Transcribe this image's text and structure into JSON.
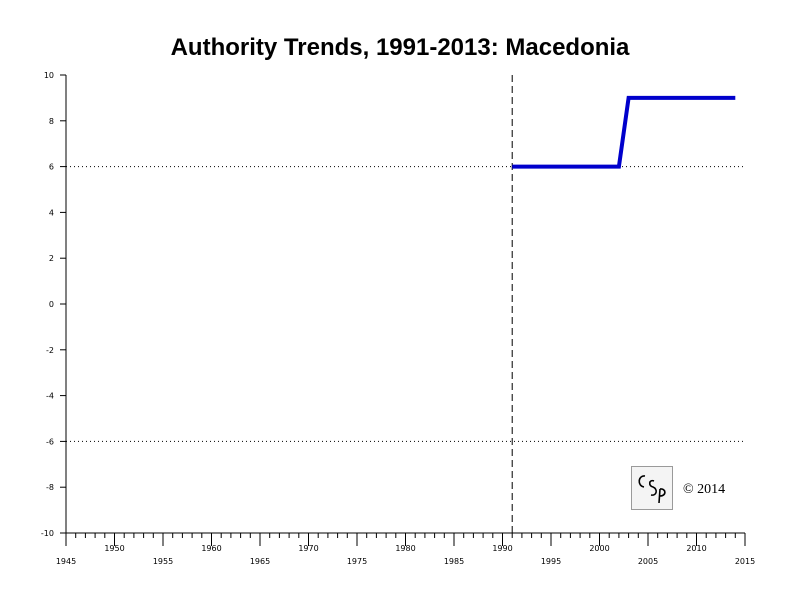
{
  "chart_data": {
    "type": "line",
    "title": "Authority Trends, 1991-2013: Macedonia",
    "xlabel": "",
    "ylabel": "",
    "xlim": [
      1945,
      2015
    ],
    "ylim": [
      -10,
      10
    ],
    "x_ticks_major": [
      1945,
      1950,
      1955,
      1960,
      1965,
      1970,
      1975,
      1980,
      1985,
      1990,
      1995,
      2000,
      2005,
      2010,
      2015
    ],
    "y_ticks": [
      10,
      8,
      6,
      4,
      2,
      0,
      -2,
      -4,
      -6,
      -8,
      -10
    ],
    "reference_lines": [
      {
        "axis": "y",
        "value": 6,
        "style": "dotted"
      },
      {
        "axis": "y",
        "value": -6,
        "style": "dotted"
      },
      {
        "axis": "x",
        "value": 1991,
        "style": "dashed"
      }
    ],
    "grid": false,
    "series": [
      {
        "color": "#0000cc",
        "x": [
          1991,
          2002,
          2003,
          2014
        ],
        "y": [
          6,
          6,
          9,
          9
        ]
      }
    ],
    "annotations": [
      "© 2014"
    ]
  },
  "logo_text": "CSP"
}
